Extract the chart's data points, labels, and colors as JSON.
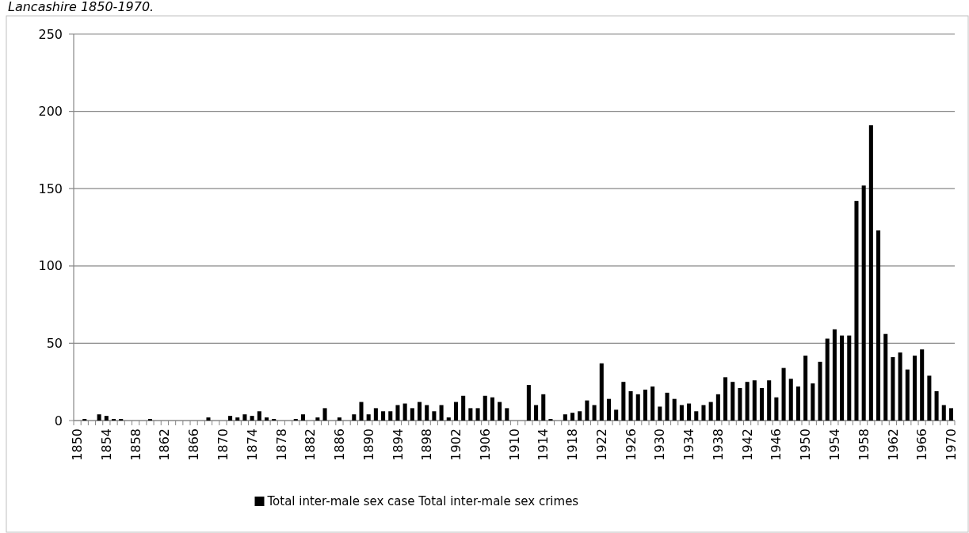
{
  "chart_data": {
    "type": "bar",
    "title": "Lancashire 1850-1970.",
    "categories": [
      "1850",
      null,
      null,
      null,
      "1854",
      null,
      null,
      null,
      "1858",
      null,
      null,
      null,
      "1862",
      null,
      null,
      null,
      "1866",
      null,
      null,
      null,
      "1870",
      null,
      null,
      null,
      "1874",
      null,
      null,
      null,
      "1878",
      null,
      null,
      null,
      "1882",
      null,
      null,
      null,
      "1886",
      null,
      null,
      null,
      "1890",
      null,
      null,
      null,
      "1894",
      null,
      null,
      null,
      "1898",
      null,
      null,
      null,
      "1902",
      null,
      null,
      null,
      "1906",
      null,
      null,
      null,
      "1910",
      null,
      null,
      null,
      "1914",
      null,
      null,
      null,
      "1918",
      null,
      null,
      null,
      "1922",
      null,
      null,
      null,
      "1926",
      null,
      null,
      null,
      "1930",
      null,
      null,
      null,
      "1934",
      null,
      null,
      null,
      "1938",
      null,
      null,
      null,
      "1942",
      null,
      null,
      null,
      "1946",
      null,
      null,
      null,
      "1950",
      null,
      null,
      null,
      "1954",
      null,
      null,
      null,
      "1958",
      null,
      null,
      null,
      "1962",
      null,
      null,
      null,
      "1966",
      null,
      null,
      null,
      "1970"
    ],
    "series": [
      {
        "name": "Total inter-male sex case Total inter-male sex crimes",
        "color": "#000000",
        "values": [
          0,
          1,
          0,
          4,
          3,
          1,
          1,
          0,
          0,
          0,
          1,
          0,
          0,
          0,
          0,
          0,
          0,
          0,
          2,
          0,
          0,
          3,
          2,
          4,
          3,
          6,
          2,
          1,
          0,
          0,
          1,
          4,
          0,
          2,
          8,
          0,
          2,
          0,
          4,
          12,
          4,
          8,
          6,
          6,
          10,
          11,
          8,
          12,
          10,
          6,
          10,
          2,
          12,
          16,
          8,
          8,
          16,
          15,
          12,
          8,
          0,
          0,
          23,
          10,
          17,
          1,
          0,
          4,
          5,
          6,
          13,
          10,
          37,
          14,
          7,
          25,
          19,
          17,
          20,
          22,
          9,
          18,
          14,
          10,
          11,
          6,
          10,
          12,
          17,
          28,
          25,
          21,
          25,
          26,
          21,
          26,
          15,
          34,
          27,
          22,
          42,
          24,
          38,
          53,
          59,
          55,
          55,
          142,
          152,
          191,
          123,
          56,
          41,
          44,
          33,
          42,
          46,
          29,
          19,
          10,
          8
        ]
      }
    ],
    "ylim": [
      0,
      250
    ],
    "yticks": [
      0,
      50,
      100,
      150,
      200,
      250
    ],
    "grid": "y",
    "legend": "bottom"
  }
}
